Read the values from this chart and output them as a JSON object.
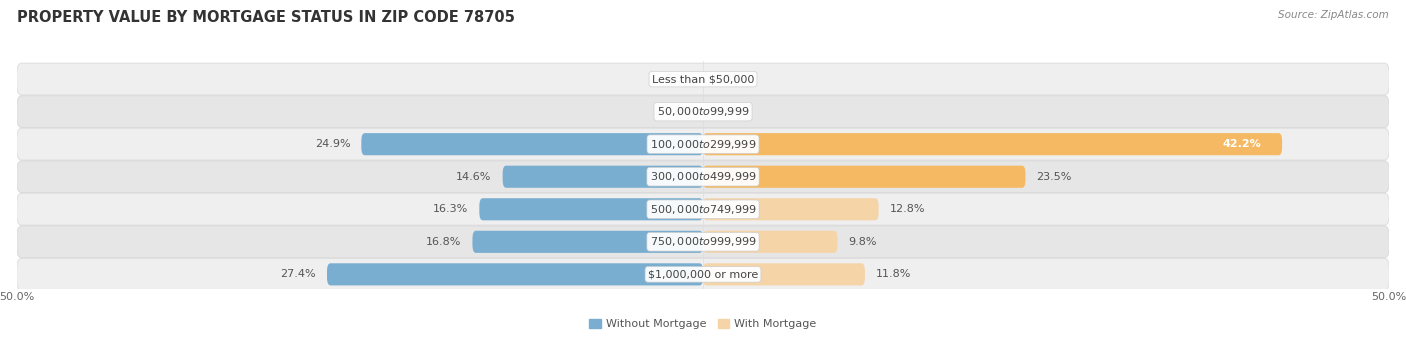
{
  "title": "PROPERTY VALUE BY MORTGAGE STATUS IN ZIP CODE 78705",
  "source": "Source: ZipAtlas.com",
  "categories": [
    "Less than $50,000",
    "$50,000 to $99,999",
    "$100,000 to $299,999",
    "$300,000 to $499,999",
    "$500,000 to $749,999",
    "$750,000 to $999,999",
    "$1,000,000 or more"
  ],
  "without_mortgage": [
    0.0,
    0.0,
    24.9,
    14.6,
    16.3,
    16.8,
    27.4
  ],
  "with_mortgage": [
    0.0,
    0.0,
    42.2,
    23.5,
    12.8,
    9.8,
    11.8
  ],
  "color_without": "#7aaed0",
  "color_with": "#f5b963",
  "color_with_dim": "#f5d4a8",
  "row_color_light": "#efefef",
  "row_color_dark": "#e6e6e6",
  "title_fontsize": 10.5,
  "source_fontsize": 7.5,
  "label_fontsize": 8,
  "category_fontsize": 8,
  "legend_fontsize": 8
}
